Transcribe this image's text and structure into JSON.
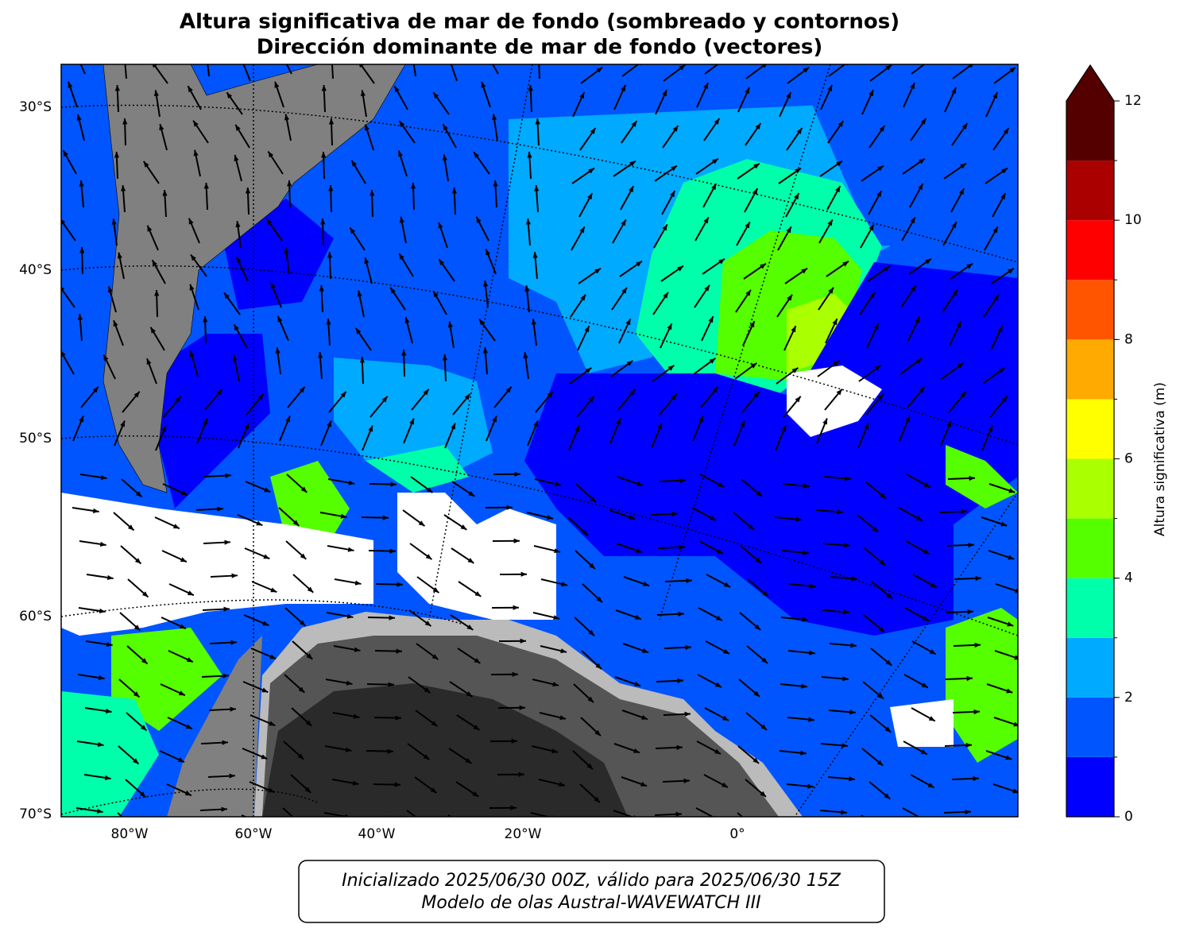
{
  "title": {
    "line1": "Altura significativa de mar de fondo (sombreado y contornos)",
    "line2": "Dirección dominante de mar de fondo (vectores)"
  },
  "map": {
    "lat_labels": [
      "30°S",
      "40°S",
      "50°S",
      "60°S",
      "70°S"
    ],
    "lon_labels": [
      "80°W",
      "60°W",
      "40°W",
      "20°W",
      "0°"
    ]
  },
  "colorbar": {
    "label": "Altura significativa (m)",
    "levels": [
      0,
      1,
      2,
      3,
      4,
      5,
      6,
      7,
      8,
      9,
      10,
      11,
      12
    ],
    "colors": [
      "#0000ff",
      "#0055ff",
      "#00aaff",
      "#00ffaa",
      "#55ff00",
      "#aaff00",
      "#ffff00",
      "#ffaa00",
      "#ff5500",
      "#ff0000",
      "#aa0000",
      "#550000"
    ],
    "extend": "max",
    "extend_color": "#550000",
    "ticks": [
      0,
      2,
      4,
      6,
      8,
      10,
      12
    ]
  },
  "footer": {
    "line1": "Inicializado 2025/06/30 00Z, válido para 2025/06/30 15Z",
    "line2": "Modelo de olas Austral-WAVEWATCH III"
  }
}
